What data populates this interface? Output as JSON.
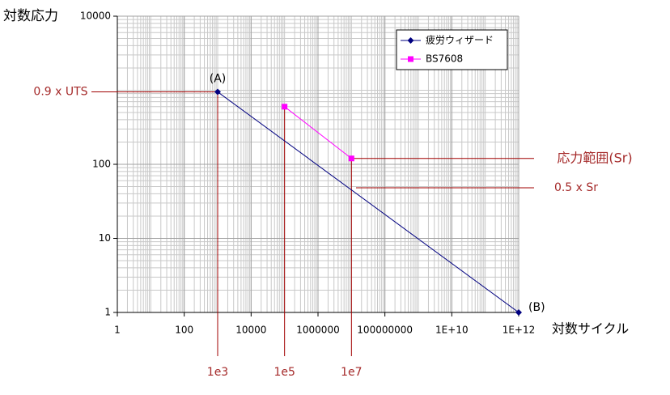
{
  "chart_data": {
    "type": "line",
    "y_label": "対数応力",
    "x_label": "対数サイクル",
    "log_x": true,
    "log_y": true,
    "grid": true,
    "legend": "upper right",
    "xlim": [
      1,
      1000000000000
    ],
    "ylim": [
      1,
      10000
    ],
    "xticks": [
      1,
      100,
      10000,
      1000000,
      100000000,
      {
        "value": 10000000000,
        "label": "1E+10"
      },
      {
        "value": 1000000000000,
        "label": "1E+12"
      }
    ],
    "yticks": [
      1,
      10,
      100,
      10000
    ],
    "series": [
      {
        "name": "疲労ウィザード",
        "color": "#000080",
        "marker": "diamond",
        "x": [
          1000,
          1000000000000
        ],
        "values": [
          950,
          1
        ]
      },
      {
        "name": "BS7608",
        "color": "#ff00ff",
        "marker": "square",
        "x": [
          100000,
          10000000
        ],
        "values": [
          600,
          120
        ]
      }
    ],
    "annotations": [
      "(A)",
      "(B)",
      "0.9 x UTS",
      "1e3",
      "1e5",
      "1e7",
      "応力範囲(Sr)",
      "0.5 x Sr"
    ]
  }
}
